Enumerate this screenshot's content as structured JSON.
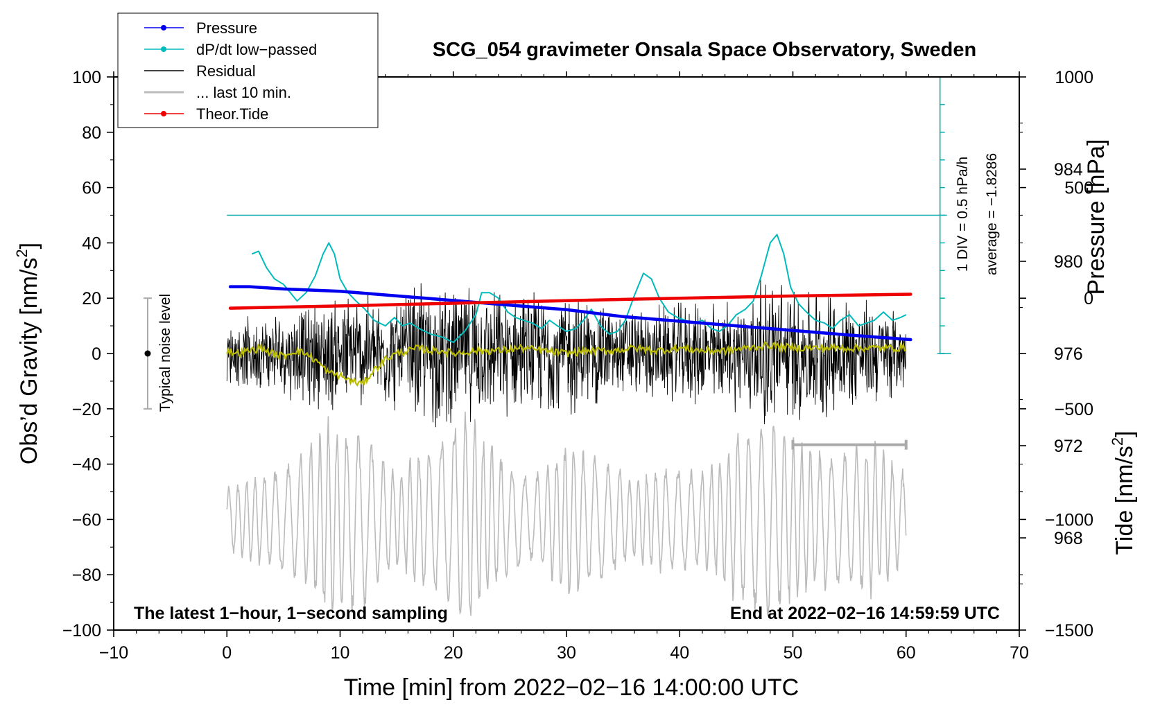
{
  "chart_data": {
    "type": "line",
    "title": "SCG_054 gravimeter Onsala Space Observatory, Sweden",
    "xlabel": "Time [min] from 2022−02−16 14:00:00 UTC",
    "ylabel": "Obs’d Gravity [nm/s",
    "ylabel_sup": "2",
    "ylabel_close": "]",
    "y2label": "Pressure [hPa]",
    "y3label": "Tide [nm/s",
    "y3label_sup": "2",
    "y3label_close": "]",
    "xlim": [
      -10,
      70
    ],
    "ylim": [
      -100,
      100
    ],
    "pressure_lim": [
      964,
      988
    ],
    "tide_lim": [
      -1500,
      1000
    ],
    "x_ticks": [
      {
        "v": -10,
        "label": "−10"
      },
      {
        "v": 0,
        "label": "0"
      },
      {
        "v": 10,
        "label": "10"
      },
      {
        "v": 20,
        "label": "20"
      },
      {
        "v": 30,
        "label": "30"
      },
      {
        "v": 40,
        "label": "40"
      },
      {
        "v": 50,
        "label": "50"
      },
      {
        "v": 60,
        "label": "60"
      },
      {
        "v": 70,
        "label": "70"
      }
    ],
    "y_ticks": [
      {
        "v": 100,
        "label": "100"
      },
      {
        "v": 80,
        "label": "80"
      },
      {
        "v": 60,
        "label": "60"
      },
      {
        "v": 40,
        "label": "40"
      },
      {
        "v": 20,
        "label": "20"
      },
      {
        "v": 0,
        "label": "0"
      },
      {
        "v": -20,
        "label": "−20"
      },
      {
        "v": -40,
        "label": "−40"
      },
      {
        "v": -60,
        "label": "−60"
      },
      {
        "v": -80,
        "label": "−80"
      },
      {
        "v": -100,
        "label": "−100"
      }
    ],
    "pressure_ticks": [
      {
        "v": 984,
        "label": "984"
      },
      {
        "v": 980,
        "label": "980"
      },
      {
        "v": 976,
        "label": "976"
      },
      {
        "v": 972,
        "label": "972"
      },
      {
        "v": 968,
        "label": "968"
      }
    ],
    "tide_ticks": [
      {
        "v": 1000,
        "label": "1000"
      },
      {
        "v": 500,
        "label": "500"
      },
      {
        "v": 0,
        "label": "0"
      },
      {
        "v": -500,
        "label": "−500"
      },
      {
        "v": -1000,
        "label": "−1000"
      },
      {
        "v": -1500,
        "label": "−1500"
      }
    ],
    "series": [
      {
        "name": "Pressure",
        "color": "#0000ee",
        "axis": "pressure",
        "x": [
          0.3,
          2,
          5,
          10,
          15,
          20,
          25,
          30,
          35,
          40,
          45,
          50,
          55,
          60.4
        ],
        "values": [
          978.9,
          978.9,
          978.8,
          978.7,
          978.5,
          978.3,
          978.1,
          977.9,
          977.6,
          977.4,
          977.2,
          977.0,
          976.8,
          976.6
        ]
      },
      {
        "name": "dP/dt low−passed",
        "color": "#00bbbb",
        "axis": "gravity",
        "x": [
          2.2,
          2.8,
          3.5,
          4.2,
          5.0,
          5.6,
          6.2,
          7.0,
          7.8,
          8.5,
          9.0,
          9.5,
          10.0,
          10.7,
          11.4,
          12.2,
          13.0,
          14.0,
          14.8,
          15.5,
          16.2,
          17.0,
          18.0,
          19.0,
          20.0,
          21.0,
          22.0,
          22.5,
          23.2,
          24.0,
          24.8,
          25.5,
          26.2,
          27.0,
          27.8,
          28.5,
          29.2,
          30.0,
          30.8,
          31.5,
          32.2,
          33.0,
          33.8,
          34.5,
          35.2,
          36.0,
          36.8,
          37.5,
          38.2,
          39.0,
          39.8,
          40.5,
          41.2,
          42.0,
          42.8,
          43.5,
          44.2,
          45.0,
          45.8,
          46.5,
          47.2,
          48.0,
          48.6,
          49.2,
          49.8,
          50.5,
          51.2,
          52.0,
          52.8,
          53.5,
          54.2,
          55.0,
          55.8,
          56.5,
          57.2,
          58.0,
          58.8,
          59.5,
          60.0
        ],
        "values": [
          36,
          37,
          31,
          27,
          25,
          22,
          19,
          22,
          28,
          36,
          40,
          36,
          27,
          22,
          19,
          16,
          12,
          10,
          13,
          10,
          11,
          9,
          7,
          6,
          4,
          8,
          14,
          22,
          22,
          20,
          15,
          13,
          12,
          11,
          9,
          12,
          10,
          8,
          9,
          12,
          16,
          10,
          7,
          8,
          12,
          21,
          29,
          27,
          20,
          15,
          13,
          12,
          11,
          12,
          9,
          8,
          10,
          14,
          16,
          19,
          28,
          40,
          43,
          36,
          24,
          18,
          15,
          12,
          11,
          9,
          12,
          14,
          10,
          11,
          12,
          15,
          12,
          13,
          14
        ]
      },
      {
        "name": "Residual",
        "color": "#000000",
        "axis": "gravity",
        "x_range": [
          0,
          60
        ],
        "envelope_x": [
          0,
          5,
          10,
          15,
          17,
          20,
          25,
          30,
          35,
          40,
          45,
          48,
          50,
          55,
          60
        ],
        "envelope_amp": [
          12,
          17,
          24,
          22,
          30,
          28,
          24,
          26,
          18,
          20,
          22,
          32,
          28,
          24,
          16
        ]
      },
      {
        "name": "... last 10 min.",
        "color": "#bbbbbb",
        "axis": "gravity",
        "x_range": [
          0,
          60
        ],
        "center": -60,
        "envelope_x": [
          0,
          3,
          6,
          9,
          12,
          15,
          18,
          21,
          24,
          27,
          30,
          33,
          36,
          39,
          42,
          45,
          48,
          51,
          54,
          57,
          60
        ],
        "envelope_amp": [
          12,
          18,
          22,
          38,
          34,
          18,
          30,
          42,
          26,
          16,
          30,
          24,
          16,
          22,
          18,
          32,
          40,
          28,
          26,
          30,
          18
        ]
      },
      {
        "name": "Theor.Tide",
        "color": "#ee0000",
        "axis": "tide",
        "x": [
          0.3,
          10,
          20,
          30,
          40,
          50,
          60.4
        ],
        "values": [
          -45,
          -35,
          -23,
          -11,
          0,
          10,
          18
        ]
      },
      {
        "name": "residual smoothed",
        "color": "#bbbb00",
        "axis": "gravity",
        "x": [
          0,
          1,
          2,
          3,
          4,
          5,
          6,
          7,
          8,
          9,
          10,
          11,
          12,
          13,
          14,
          15,
          16,
          17,
          18,
          19,
          20,
          22,
          24,
          26,
          28,
          30,
          32,
          34,
          36,
          38,
          40,
          42,
          44,
          46,
          48,
          50,
          52,
          54,
          56,
          58,
          60
        ],
        "values": [
          1,
          0,
          1,
          2,
          0,
          -1,
          1,
          0,
          -3,
          -7,
          -8,
          -10,
          -11,
          -6,
          -2,
          0,
          1,
          2,
          1,
          1,
          0,
          1,
          1,
          2,
          1,
          0,
          1,
          1,
          2,
          1,
          2,
          1,
          1,
          2,
          3,
          2,
          2,
          2,
          2,
          2,
          2
        ]
      }
    ],
    "legend": [
      {
        "label": "Pressure",
        "color": "#0000ee",
        "marker": true
      },
      {
        "label": "dP/dt low−passed",
        "color": "#00bbbb",
        "marker": true
      },
      {
        "label": "Residual",
        "color": "#000000",
        "marker": false
      },
      {
        "label": "... last 10 min.",
        "color": "#bbbbbb",
        "marker": false
      },
      {
        "label": "Theor.Tide",
        "color": "#ee0000",
        "marker": true
      }
    ],
    "annotations": {
      "noise_label": "Typical noise level",
      "noise_range": [
        -20,
        20
      ],
      "noise_x": -7,
      "dpdt_scale": "1 DIV = 0.5 hPa/h",
      "dpdt_average": "average = −1.8286",
      "dpdt_ref_gravity": 50,
      "dpdt_scale_x": 63,
      "dpdt_scale_range": [
        0,
        100
      ],
      "dpdt_scale_divisions": 10,
      "last_10min_bar": [
        50,
        60
      ],
      "last_10min_bar_y": -33,
      "sampling_note": "The latest 1−hour, 1−second sampling",
      "end_note": "End at 2022−02−16 14:59:59 UTC"
    }
  }
}
